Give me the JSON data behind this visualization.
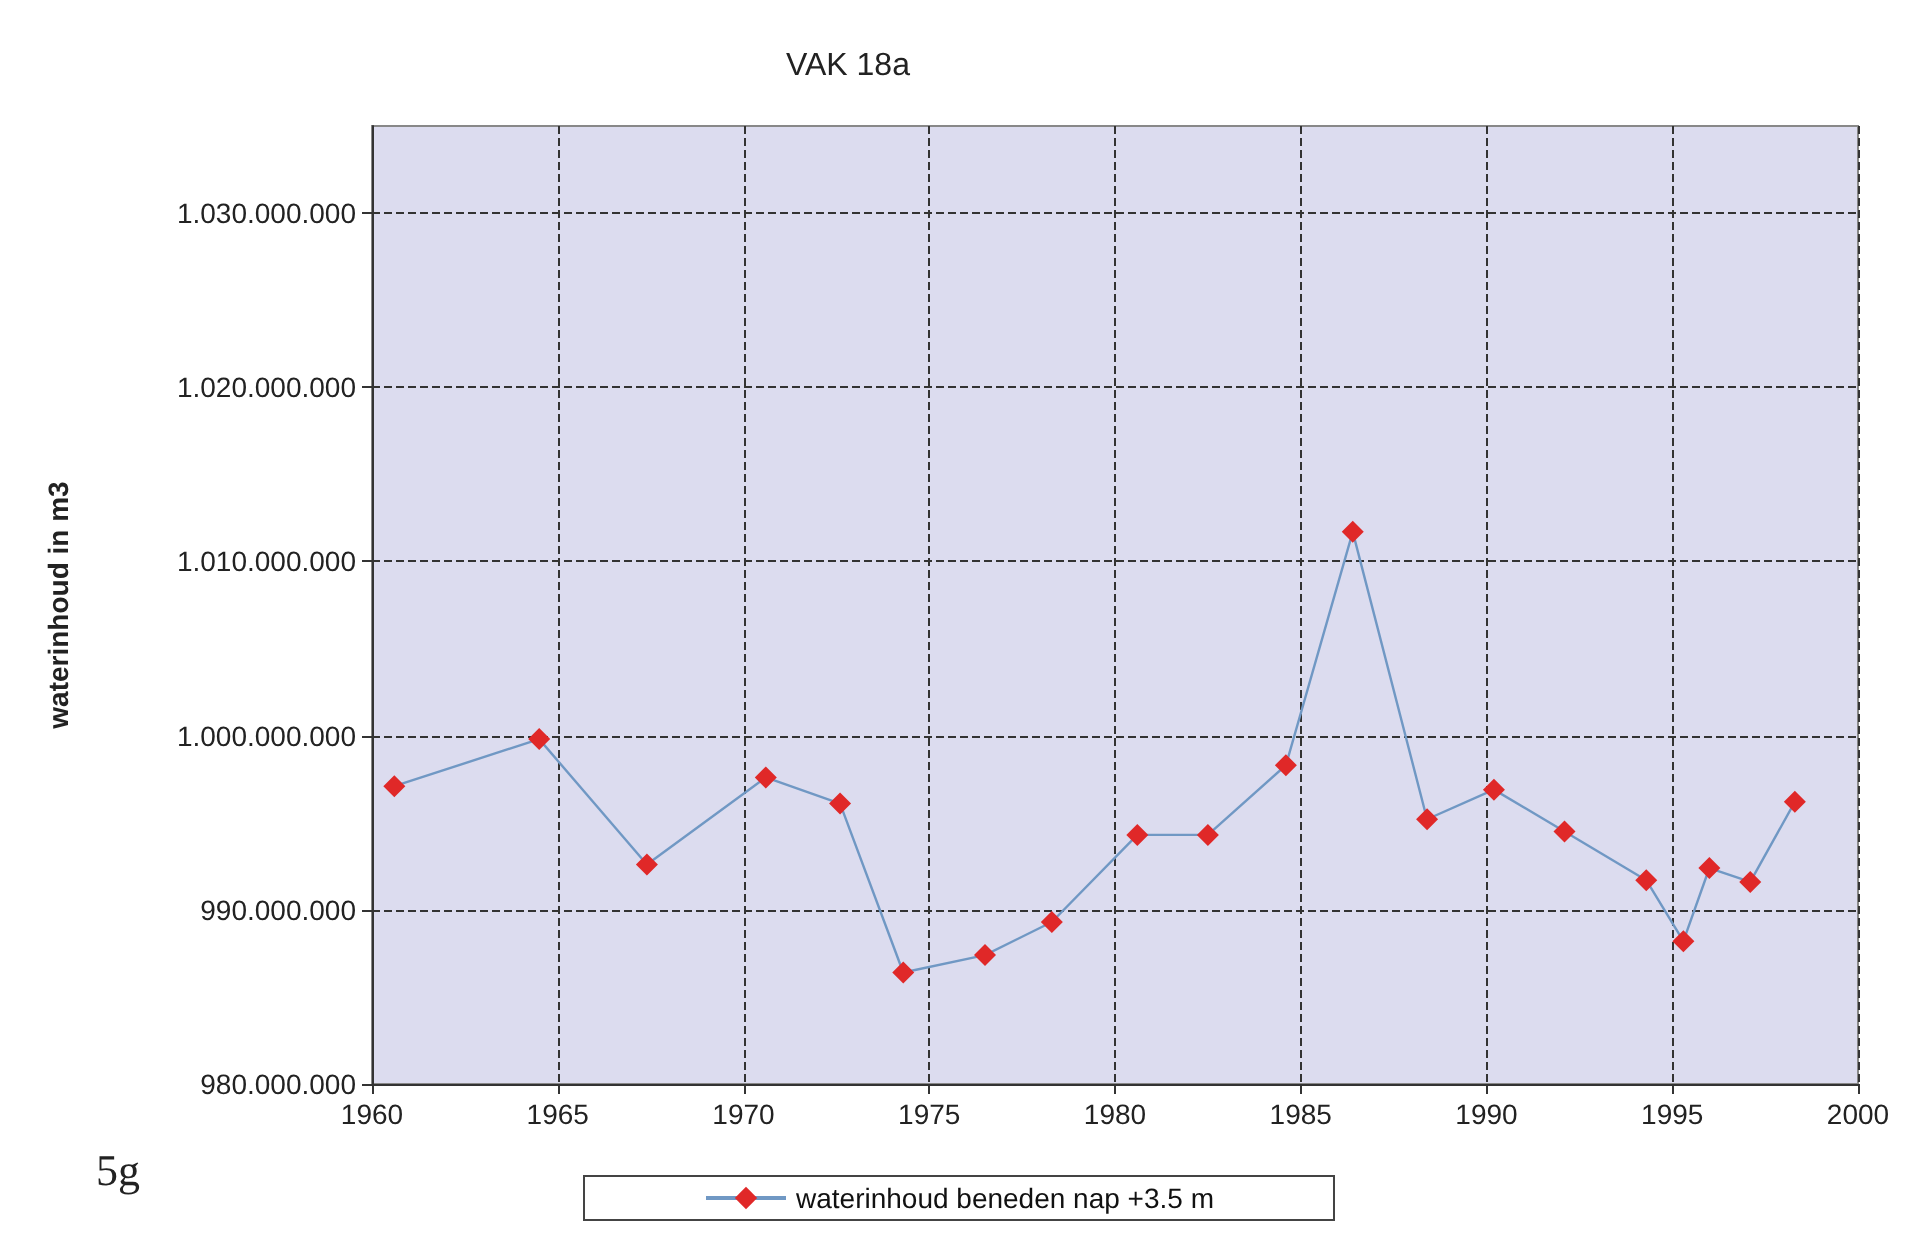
{
  "chart_data": {
    "type": "line",
    "title": "VAK 18a",
    "ylabel": "waterinhoud in m3",
    "annotations": [
      "5g"
    ],
    "series": [
      {
        "name": "waterinhoud beneden nap +3.5 m",
        "color": "#e02828",
        "x": [
          1960.6,
          1964.5,
          1967.4,
          1970.6,
          1972.6,
          1974.3,
          1976.5,
          1978.3,
          1980.6,
          1982.5,
          1984.6,
          1986.4,
          1988.4,
          1990.2,
          1992.1,
          1994.3,
          1995.3,
          1996.0,
          1997.1,
          1998.3
        ],
        "values": [
          997100000,
          999800000,
          992600000,
          997600000,
          996100000,
          986400000,
          987400000,
          989300000,
          994300000,
          994300000,
          998300000,
          1011700000,
          995200000,
          996900000,
          994500000,
          991700000,
          988200000,
          992400000,
          991600000,
          996200000
        ]
      }
    ],
    "xlim": [
      1960,
      2000
    ],
    "xticks": [
      1960,
      1965,
      1970,
      1975,
      1980,
      1985,
      1990,
      1995,
      2000
    ],
    "ylim": [
      980000000,
      1035000000
    ],
    "yticks": [
      {
        "value": 980000000,
        "label": "980.000.000"
      },
      {
        "value": 990000000,
        "label": "990.000.000"
      },
      {
        "value": 1000000000,
        "label": "1.000.000.000"
      },
      {
        "value": 1010000000,
        "label": "1.010.000.000"
      },
      {
        "value": 1020000000,
        "label": "1.020.000.000"
      },
      {
        "value": 1030000000,
        "label": "1.030.000.000"
      }
    ],
    "grid": true,
    "legend": "bottom",
    "marker": "diamond",
    "line_style": "solid"
  }
}
